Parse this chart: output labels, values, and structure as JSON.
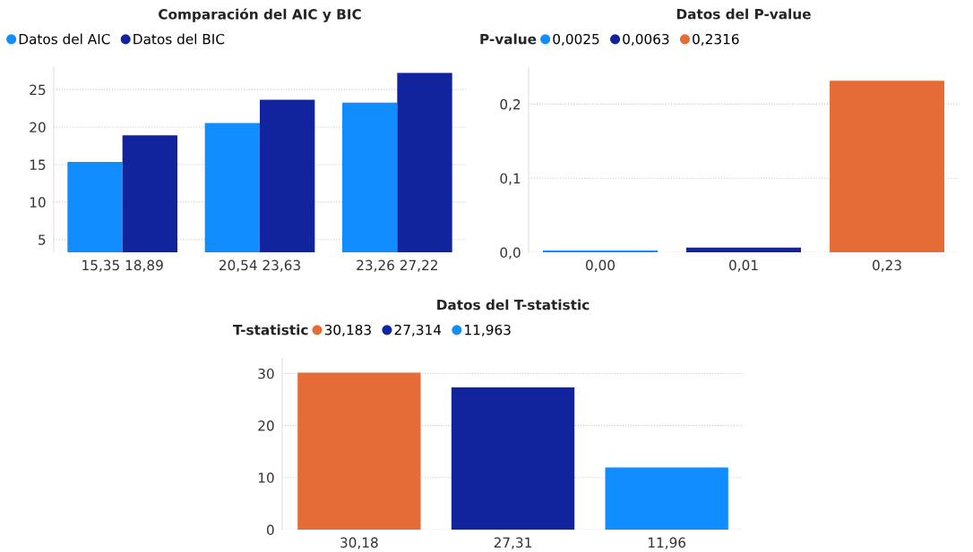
{
  "chart_data": [
    {
      "type": "bar",
      "title": "Comparación del AIC y BIC",
      "categories": [
        "15,35 18,89",
        "20,54 23,63",
        "23,26 27,22"
      ],
      "series": [
        {
          "name": "Datos del AIC",
          "color": "#118dff",
          "values": [
            15.35,
            20.54,
            23.26
          ]
        },
        {
          "name": "Datos del BIC",
          "color": "#12239e",
          "values": [
            18.89,
            23.63,
            27.22
          ]
        }
      ],
      "ylim": [
        3.3,
        28
      ],
      "yticks": [
        5,
        10,
        15,
        20,
        25
      ],
      "grid": "y",
      "legend": "top left"
    },
    {
      "type": "bar",
      "title": "Datos del P-value",
      "legend_title": "P-value",
      "categories": [
        "0,00",
        "0,01",
        "0,23"
      ],
      "series": [
        {
          "name": "0,0025",
          "color": "#118dff",
          "values": [
            0.0025,
            null,
            null
          ]
        },
        {
          "name": "0,0063",
          "color": "#12239e",
          "values": [
            null,
            0.0063,
            null
          ]
        },
        {
          "name": "0,2316",
          "color": "#e66c37",
          "values": [
            null,
            null,
            0.2316
          ]
        }
      ],
      "ylim": [
        0,
        0.25
      ],
      "yticks": [
        {
          "value": 0,
          "label": "0,0"
        },
        {
          "value": 0.1,
          "label": "0,1"
        },
        {
          "value": 0.2,
          "label": "0,2"
        }
      ],
      "grid": "y",
      "legend": "top left"
    },
    {
      "type": "bar",
      "title": "Datos del T-statistic",
      "legend_title": "T-statistic",
      "categories": [
        "30,18",
        "27,31",
        "11,96"
      ],
      "series": [
        {
          "name": "30,183",
          "color": "#e66c37",
          "values": [
            30.183,
            null,
            null
          ]
        },
        {
          "name": "27,314",
          "color": "#12239e",
          "values": [
            null,
            27.314,
            null
          ]
        },
        {
          "name": "11,963",
          "color": "#118dff",
          "values": [
            null,
            null,
            11.963
          ]
        }
      ],
      "ylim": [
        0,
        33
      ],
      "yticks": [
        0,
        10,
        20,
        30
      ],
      "grid": "y",
      "legend": "top left"
    }
  ]
}
